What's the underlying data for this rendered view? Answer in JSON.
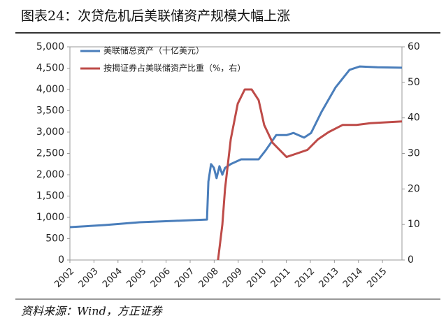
{
  "chart_data": {
    "type": "line",
    "title": "图表24：次贷危机后美联储资产规模大幅上涨",
    "source": "资料来源：Wind，方正证券",
    "xlim": [
      2002,
      2015.81
    ],
    "xticks": [
      2002,
      2003,
      2004,
      2005,
      2006,
      2007,
      2008,
      2009,
      2010,
      2011,
      2012,
      2013,
      2014,
      2015
    ],
    "ylim": [
      0,
      5000
    ],
    "yticks": [
      0,
      500,
      {
        "value": 1000,
        "label": "1,000"
      },
      {
        "value": 1500,
        "label": "1,500"
      },
      {
        "value": 2000,
        "label": "2,000"
      },
      {
        "value": 2500,
        "label": "2,500"
      },
      {
        "value": 3000,
        "label": "3,000"
      },
      {
        "value": 3500,
        "label": "3,500"
      },
      {
        "value": 4000,
        "label": "4,000"
      },
      {
        "value": 4500,
        "label": "4,500"
      },
      {
        "value": 5000,
        "label": "5,000"
      }
    ],
    "y2lim": [
      0,
      60
    ],
    "y2ticks": [
      0,
      10,
      20,
      30,
      40,
      50,
      60
    ],
    "series": [
      {
        "name": "美联储总资产（十亿美元）",
        "color": "#4a7ebb",
        "x": [
          2002.0,
          2003.45,
          2004.9,
          2006.36,
          2007.7,
          2007.76,
          2007.87,
          2007.99,
          2008.1,
          2008.22,
          2008.34,
          2008.45,
          2008.69,
          2009.12,
          2009.85,
          2010.14,
          2010.58,
          2011.01,
          2011.3,
          2011.74,
          2012.03,
          2012.47,
          2013.05,
          2013.63,
          2014.06,
          2014.79,
          2015.81
        ],
        "values": [
          770,
          820,
          885,
          918,
          950,
          1840,
          2250,
          2160,
          1920,
          2200,
          2000,
          2160,
          2250,
          2360,
          2360,
          2570,
          2930,
          2930,
          2980,
          2870,
          2980,
          3480,
          4050,
          4460,
          4540,
          4520,
          4510
        ]
      },
      {
        "name": "按揭证券占美联储资产比重（%，右）",
        "color": "#be4b48",
        "axis": "y2",
        "x": [
          2008.16,
          2008.34,
          2008.45,
          2008.69,
          2008.98,
          2009.27,
          2009.56,
          2009.85,
          2010.08,
          2010.43,
          2011.01,
          2011.45,
          2011.88,
          2012.32,
          2012.76,
          2013.34,
          2013.92,
          2014.5,
          2015.81
        ],
        "values": [
          0,
          10,
          20,
          34,
          44,
          48,
          48,
          45,
          38,
          33,
          29,
          30,
          31,
          34,
          36,
          38,
          38,
          38.5,
          39
        ]
      }
    ]
  }
}
